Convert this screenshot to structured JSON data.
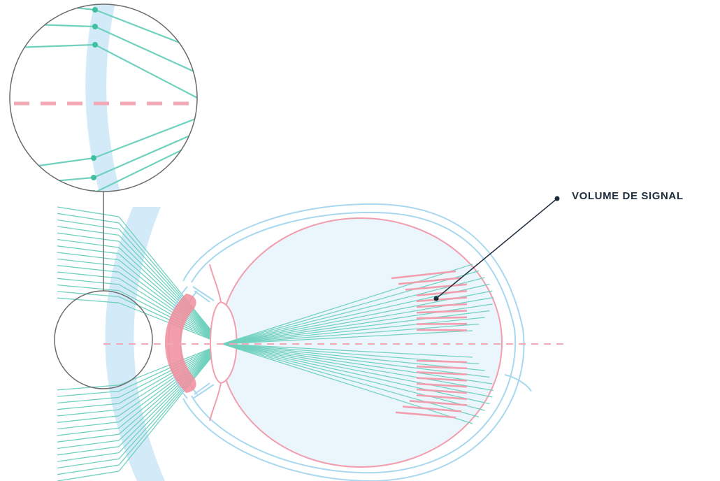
{
  "annotation": {
    "label": "VOLUME DE SIGNAL"
  },
  "colors": {
    "background": "#ffffff",
    "ray": "#6fd1be",
    "ray_dot": "#3fbf9f",
    "retina": "#f19fae",
    "eye_outline": "#a8d8ef",
    "eye_fill": "#eaf5fc",
    "lens_glass": "#d3ebf8",
    "cornea_highlight": "#f28d9c",
    "optical_axis": "#f3a9b5",
    "circle_outline": "#6b6b6b",
    "label": "#1e2d3d"
  },
  "icons": {
    "annotation_marker": "dot"
  }
}
